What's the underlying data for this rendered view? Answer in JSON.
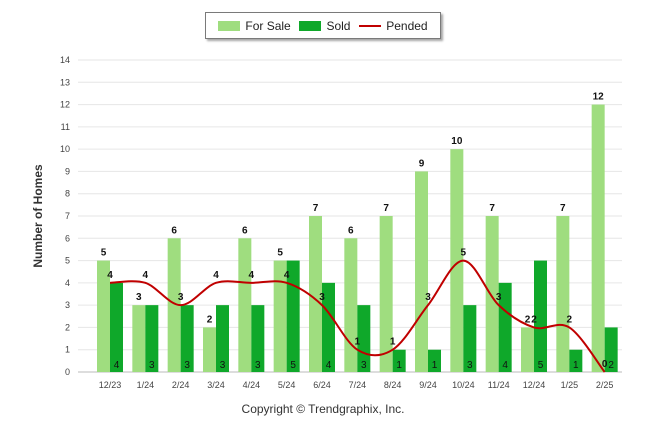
{
  "chart_data": {
    "type": "bar",
    "categories": [
      "12/23",
      "1/24",
      "2/24",
      "3/24",
      "4/24",
      "5/24",
      "6/24",
      "7/24",
      "8/24",
      "9/24",
      "10/24",
      "11/24",
      "12/24",
      "1/25",
      "2/25"
    ],
    "series": [
      {
        "name": "For Sale",
        "type": "bar",
        "values": [
          5,
          3,
          6,
          2,
          6,
          5,
          7,
          6,
          7,
          9,
          10,
          7,
          2,
          7,
          12
        ]
      },
      {
        "name": "Sold",
        "type": "bar",
        "values": [
          4,
          3,
          3,
          3,
          3,
          5,
          4,
          3,
          1,
          1,
          3,
          4,
          5,
          1,
          2
        ]
      },
      {
        "name": "Pended",
        "type": "line",
        "values": [
          4,
          4,
          3,
          4,
          4,
          4,
          3,
          1,
          1,
          3,
          5,
          3,
          2,
          2,
          0
        ]
      }
    ],
    "sold_inner_labels": [
      "4",
      "3",
      "3",
      "3",
      "3",
      "5",
      "4",
      "3",
      "1",
      "1",
      "3",
      "4",
      "5",
      "1",
      "2"
    ],
    "ylabel": "Number of Homes",
    "ylim": [
      0,
      14
    ],
    "yticks": [
      "0",
      "1",
      "2",
      "3",
      "4",
      "5",
      "6",
      "7",
      "8",
      "9",
      "10",
      "11",
      "12",
      "13",
      "14"
    ],
    "grid": true,
    "legend_position": "top-center"
  },
  "colors": {
    "for_sale": "#9fdd7f",
    "sold": "#0fa82a",
    "pended": "#c00000"
  },
  "footer": {
    "copyright": "Copyright © Trendgraphix, Inc."
  }
}
